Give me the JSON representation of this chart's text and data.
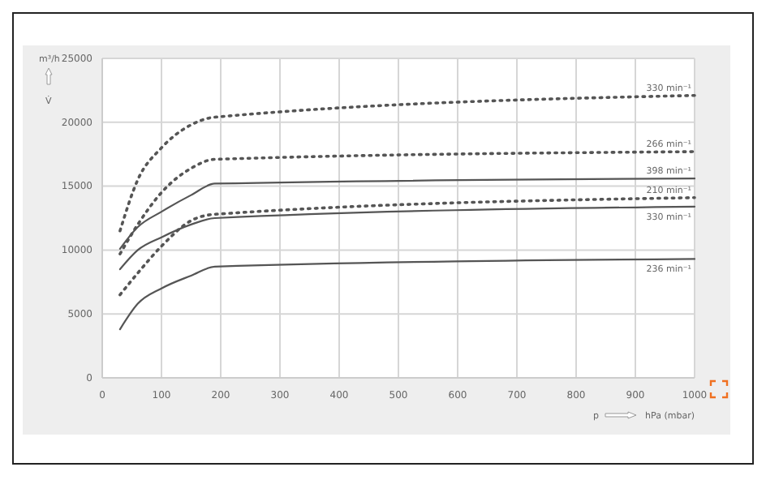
{
  "chart_data": {
    "type": "line",
    "ylabel": "m³/h",
    "xlabel": "hPa (mbar)",
    "annotations": [
      "V̇",
      "p"
    ],
    "xlim": [
      0,
      1000
    ],
    "xticks": [
      0,
      100,
      200,
      300,
      400,
      500,
      600,
      700,
      800,
      900,
      1000
    ],
    "ylim": [
      0,
      25000
    ],
    "yticks": [
      0,
      5000,
      10000,
      15000,
      20000,
      25000
    ],
    "grid": true,
    "x": [
      30,
      60,
      100,
      150,
      190,
      1000
    ],
    "series": [
      {
        "name": "330 min⁻¹",
        "color": "#555555",
        "line_style": "dotted",
        "values": [
          11500,
          15500,
          18000,
          19800,
          20400,
          22100
        ]
      },
      {
        "name": "266 min⁻¹",
        "color": "#555555",
        "line_style": "dotted",
        "values": [
          9700,
          12000,
          14500,
          16400,
          17100,
          17700
        ]
      },
      {
        "name": "398 min⁻¹",
        "color": "#555555",
        "line_style": "solid",
        "values": [
          10100,
          11800,
          13000,
          14300,
          15200,
          15600
        ]
      },
      {
        "name": "210 min⁻¹",
        "color": "#555555",
        "line_style": "dotted",
        "values": [
          6500,
          8200,
          10300,
          12300,
          12800,
          14100
        ]
      },
      {
        "name": "330 min⁻¹",
        "color": "#555555",
        "line_style": "solid",
        "values": [
          8500,
          10000,
          11000,
          12000,
          12500,
          13400
        ]
      },
      {
        "name": "236 min⁻¹",
        "color": "#555555",
        "line_style": "solid",
        "values": [
          3800,
          5800,
          7000,
          8000,
          8700,
          9300
        ]
      }
    ]
  }
}
